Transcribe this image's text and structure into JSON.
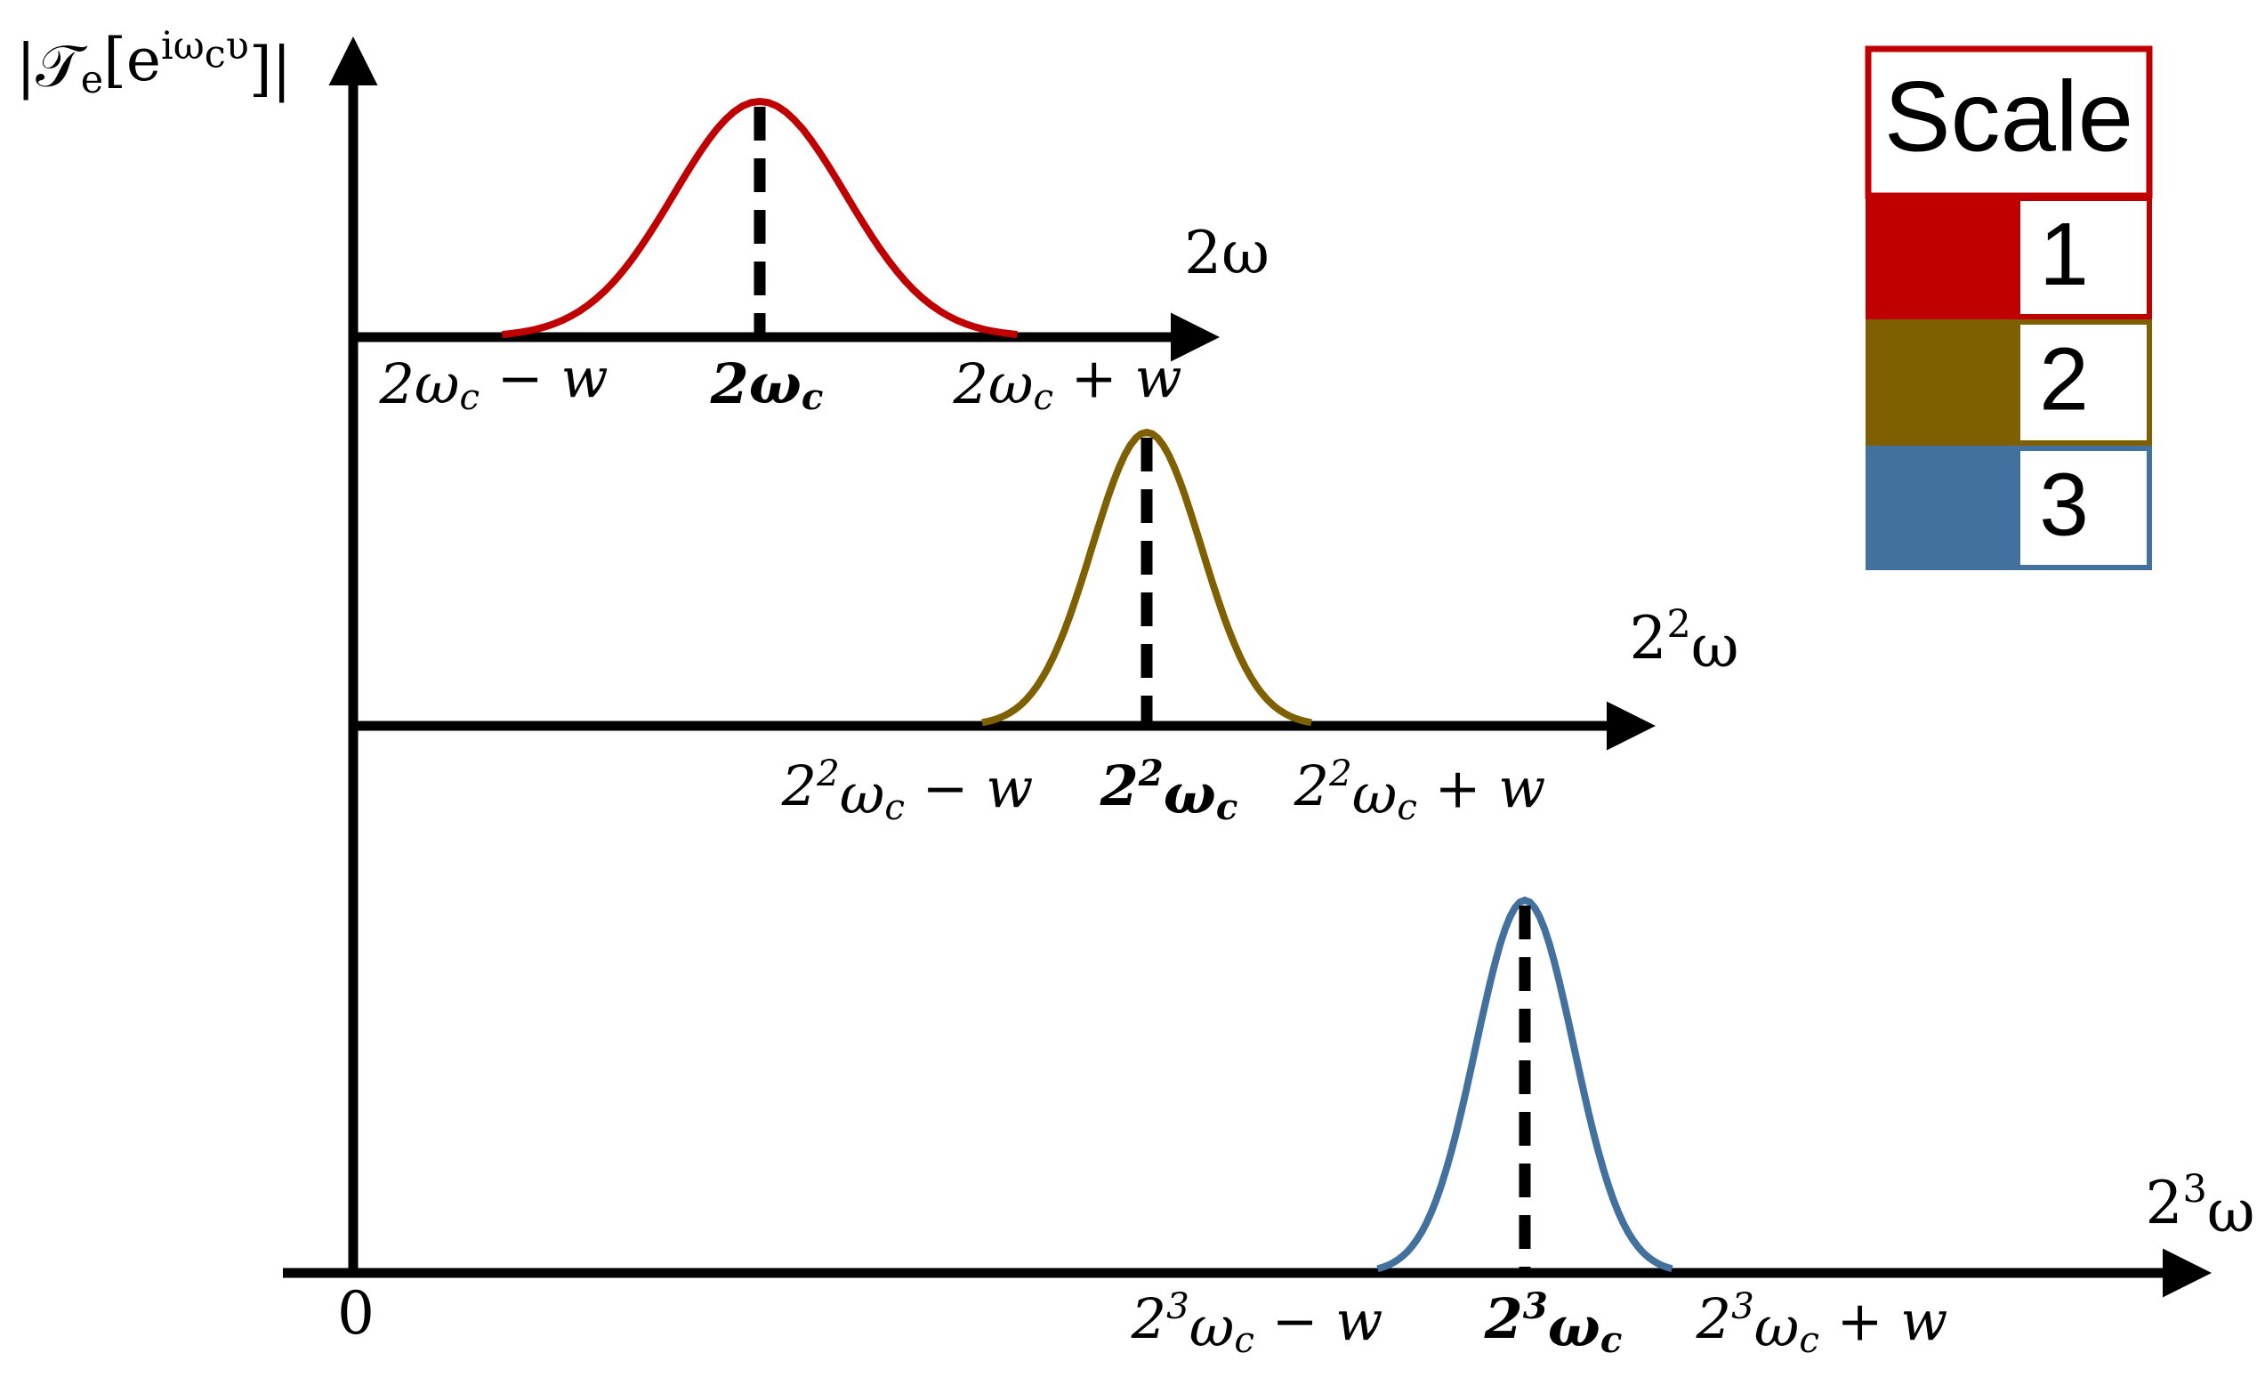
{
  "y_axis_label": [
    {
      "text": "|𝒯"
    },
    {
      "text": "e",
      "pos": "sub"
    },
    {
      "text": "[e"
    },
    {
      "text": "iω",
      "pos": "sup"
    },
    {
      "text": "c",
      "pos": "supsub"
    },
    {
      "text": "υ",
      "pos": "sup"
    },
    {
      "text": "]|"
    }
  ],
  "origin_label": "0",
  "legend_title": "Scale",
  "scales": [
    {
      "legend": "1",
      "color": "#c00000",
      "axis_label": [
        {
          "text": "2ω"
        }
      ],
      "left_label": [
        {
          "text": "2ω"
        },
        {
          "text": "c",
          "pos": "sub"
        },
        {
          "text": " − w"
        }
      ],
      "center_label": [
        {
          "text": "2ω"
        },
        {
          "text": "c",
          "pos": "sub"
        }
      ],
      "right_label": [
        {
          "text": "2ω"
        },
        {
          "text": "c",
          "pos": "sub"
        },
        {
          "text": " + w"
        }
      ]
    },
    {
      "legend": "2",
      "color": "#7f6000",
      "axis_label": [
        {
          "text": "2"
        },
        {
          "text": "2",
          "pos": "sup"
        },
        {
          "text": "ω"
        }
      ],
      "left_label": [
        {
          "text": "2"
        },
        {
          "text": "2",
          "pos": "sup"
        },
        {
          "text": "ω"
        },
        {
          "text": "c",
          "pos": "sub"
        },
        {
          "text": " − w"
        }
      ],
      "center_label": [
        {
          "text": "2"
        },
        {
          "text": "2",
          "pos": "sup"
        },
        {
          "text": "ω"
        },
        {
          "text": "c",
          "pos": "sub"
        }
      ],
      "right_label": [
        {
          "text": "2"
        },
        {
          "text": "2",
          "pos": "sup"
        },
        {
          "text": "ω"
        },
        {
          "text": "c",
          "pos": "sub"
        },
        {
          "text": " + w"
        }
      ]
    },
    {
      "legend": "3",
      "color": "#41719c",
      "axis_label": [
        {
          "text": "2"
        },
        {
          "text": "3",
          "pos": "sup"
        },
        {
          "text": "ω"
        }
      ],
      "left_label": [
        {
          "text": "2"
        },
        {
          "text": "3",
          "pos": "sup"
        },
        {
          "text": "ω"
        },
        {
          "text": "c",
          "pos": "sub"
        },
        {
          "text": " − w"
        }
      ],
      "center_label": [
        {
          "text": "2"
        },
        {
          "text": "3",
          "pos": "sup"
        },
        {
          "text": "ω"
        },
        {
          "text": "c",
          "pos": "sub"
        }
      ],
      "right_label": [
        {
          "text": "2"
        },
        {
          "text": "3",
          "pos": "sup"
        },
        {
          "text": "ω"
        },
        {
          "text": "c",
          "pos": "sub"
        },
        {
          "text": " + w"
        }
      ]
    }
  ]
}
